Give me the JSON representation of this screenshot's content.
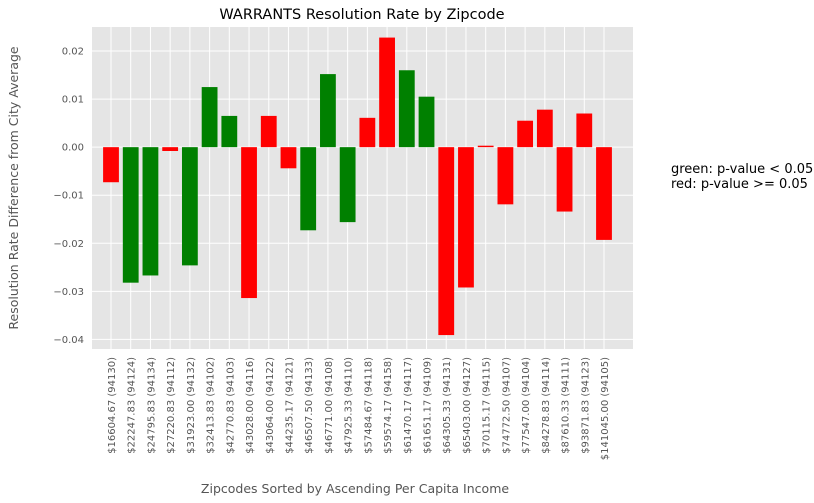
{
  "chart_data": {
    "type": "bar",
    "title": "WARRANTS Resolution Rate by Zipcode",
    "xlabel": "Zipcodes Sorted by Ascending Per Capita Income",
    "ylabel": "Resolution Rate Difference from City Average",
    "ylim": [
      -0.042,
      0.025
    ],
    "yticks": [
      -0.04,
      -0.03,
      -0.02,
      -0.01,
      0.0,
      0.01,
      0.02
    ],
    "ytick_labels": [
      "−0.04",
      "−0.03",
      "−0.02",
      "−0.01",
      "0.00",
      "0.01",
      "0.02"
    ],
    "grid": true,
    "categories": [
      "$16604.67  (94130)",
      "$22247.83  (94124)",
      "$24795.83  (94134)",
      "$27220.83  (94112)",
      "$31923.00  (94132)",
      "$32413.83  (94102)",
      "$42770.83  (94103)",
      "$43028.00  (94116)",
      "$43064.00  (94122)",
      "$44235.17  (94121)",
      "$46507.50  (94133)",
      "$46771.00  (94108)",
      "$47925.33  (94110)",
      "$57484.67  (94118)",
      "$59574.17  (94158)",
      "$61470.17  (94117)",
      "$61651.17  (94109)",
      "$64305.33  (94131)",
      "$65403.00  (94127)",
      "$70115.17  (94115)",
      "$74772.50  (94107)",
      "$77547.00  (94104)",
      "$84278.83  (94114)",
      "$87610.33  (94111)",
      "$93871.83  (94123)",
      "$141045.00  (94105)"
    ],
    "values": [
      -0.0073,
      -0.0282,
      -0.0267,
      -0.0008,
      -0.0246,
      0.0125,
      0.0065,
      -0.0314,
      0.0065,
      -0.0044,
      -0.0173,
      0.0152,
      -0.0156,
      0.0061,
      0.0228,
      0.016,
      0.0105,
      -0.0391,
      -0.0292,
      0.0003,
      -0.0119,
      0.0055,
      0.0078,
      -0.0134,
      0.007,
      -0.0193
    ],
    "significant": [
      false,
      true,
      true,
      false,
      true,
      true,
      true,
      false,
      false,
      false,
      true,
      true,
      true,
      false,
      false,
      true,
      true,
      false,
      false,
      false,
      false,
      false,
      false,
      false,
      false,
      false
    ],
    "colors": {
      "significant": "#008000",
      "not_significant": "#ff0000",
      "plot_bg": "#e5e5e5",
      "grid": "#ffffff",
      "text": "#555555"
    },
    "legend_lines": [
      "green: p-value < 0.05",
      "red: p-value >= 0.05"
    ],
    "legend_placement": "right"
  }
}
